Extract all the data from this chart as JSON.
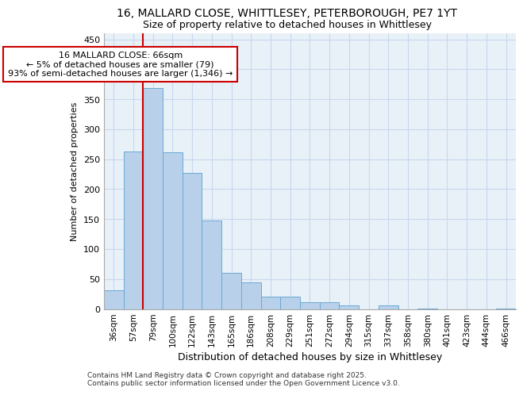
{
  "title_line1": "16, MALLARD CLOSE, WHITTLESEY, PETERBOROUGH, PE7 1YT",
  "title_line2": "Size of property relative to detached houses in Whittlesey",
  "xlabel": "Distribution of detached houses by size in Whittlesey",
  "ylabel": "Number of detached properties",
  "categories": [
    "36sqm",
    "57sqm",
    "79sqm",
    "100sqm",
    "122sqm",
    "143sqm",
    "165sqm",
    "186sqm",
    "208sqm",
    "229sqm",
    "251sqm",
    "272sqm",
    "294sqm",
    "315sqm",
    "337sqm",
    "358sqm",
    "380sqm",
    "401sqm",
    "423sqm",
    "444sqm",
    "466sqm"
  ],
  "values": [
    31,
    263,
    369,
    261,
    227,
    148,
    60,
    45,
    20,
    20,
    11,
    11,
    6,
    0,
    6,
    0,
    1,
    0,
    0,
    0,
    1
  ],
  "bar_color": "#b8d0ea",
  "bar_edge_color": "#6aaad4",
  "grid_color": "#c8d8ee",
  "background_color": "#e8f0f8",
  "vline_x_data": 1.5,
  "vline_color": "#cc0000",
  "annotation_title": "16 MALLARD CLOSE: 66sqm",
  "annotation_line2": "← 5% of detached houses are smaller (79)",
  "annotation_line3": "93% of semi-detached houses are larger (1,346) →",
  "annotation_box_color": "#cc0000",
  "ylim": [
    0,
    460
  ],
  "yticks": [
    0,
    50,
    100,
    150,
    200,
    250,
    300,
    350,
    400,
    450
  ],
  "footnote1": "Contains HM Land Registry data © Crown copyright and database right 2025.",
  "footnote2": "Contains public sector information licensed under the Open Government Licence v3.0."
}
